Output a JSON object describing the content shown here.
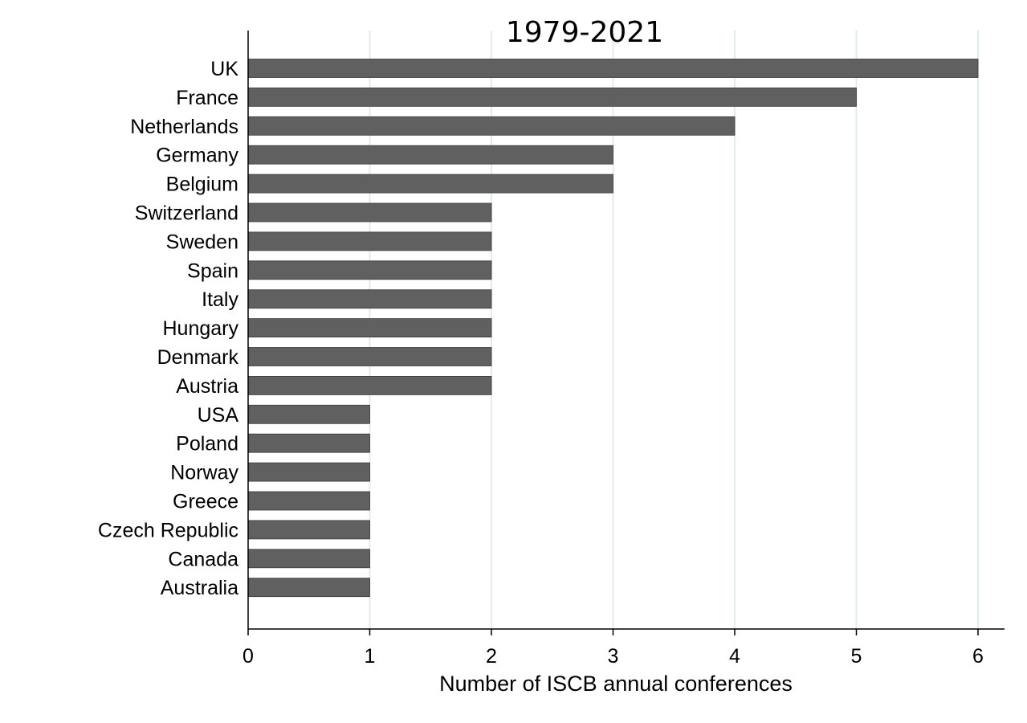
{
  "chart_data": {
    "type": "bar",
    "orientation": "horizontal",
    "title": "1979-2021",
    "xlabel": "Number of ISCB annual conferences",
    "ylabel": "",
    "categories": [
      "UK",
      "France",
      "Netherlands",
      "Germany",
      "Belgium",
      "Switzerland",
      "Sweden",
      "Spain",
      "Italy",
      "Hungary",
      "Denmark",
      "Austria",
      "USA",
      "Poland",
      "Norway",
      "Greece",
      "Czech Republic",
      "Canada",
      "Australia"
    ],
    "values": [
      6,
      5,
      4,
      3,
      3,
      2,
      2,
      2,
      2,
      2,
      2,
      2,
      1,
      1,
      1,
      1,
      1,
      1,
      1
    ],
    "xlim": [
      0,
      6.2
    ],
    "xticks": [
      0,
      1,
      2,
      3,
      4,
      5,
      6
    ],
    "grid": "vertical",
    "legend": "none",
    "colors": {
      "bar": "#606060",
      "grid": "#e3ebeb",
      "axis": "#000000",
      "background": "#ffffff"
    }
  }
}
